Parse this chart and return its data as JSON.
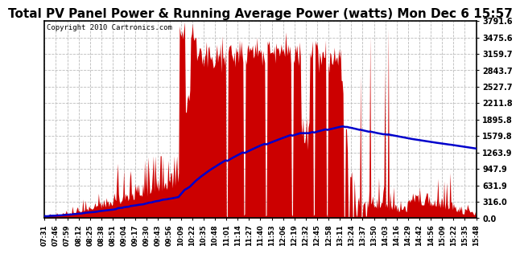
{
  "title": "Total PV Panel Power & Running Average Power (watts) Mon Dec 6 15:57",
  "copyright": "Copyright 2010 Cartronics.com",
  "y_ticks": [
    0.0,
    316.0,
    631.9,
    947.9,
    1263.9,
    1579.8,
    1895.8,
    2211.8,
    2527.7,
    2843.7,
    3159.7,
    3475.6,
    3791.6
  ],
  "x_labels": [
    "07:31",
    "07:46",
    "07:59",
    "08:12",
    "08:25",
    "08:38",
    "08:51",
    "09:04",
    "09:17",
    "09:30",
    "09:43",
    "09:56",
    "10:09",
    "10:22",
    "10:35",
    "10:48",
    "11:01",
    "11:14",
    "11:27",
    "11:40",
    "11:53",
    "12:06",
    "12:19",
    "12:32",
    "12:45",
    "12:58",
    "13:11",
    "13:24",
    "13:37",
    "13:50",
    "14:03",
    "14:16",
    "14:29",
    "14:42",
    "14:56",
    "15:09",
    "15:22",
    "15:35",
    "15:48"
  ],
  "bg_color": "#ffffff",
  "plot_bg_color": "#ffffff",
  "bar_color": "#cc0000",
  "line_color": "#0000cc",
  "grid_color": "#bbbbbb",
  "title_fontsize": 11,
  "ymax": 3791.6,
  "ymin": 0.0
}
